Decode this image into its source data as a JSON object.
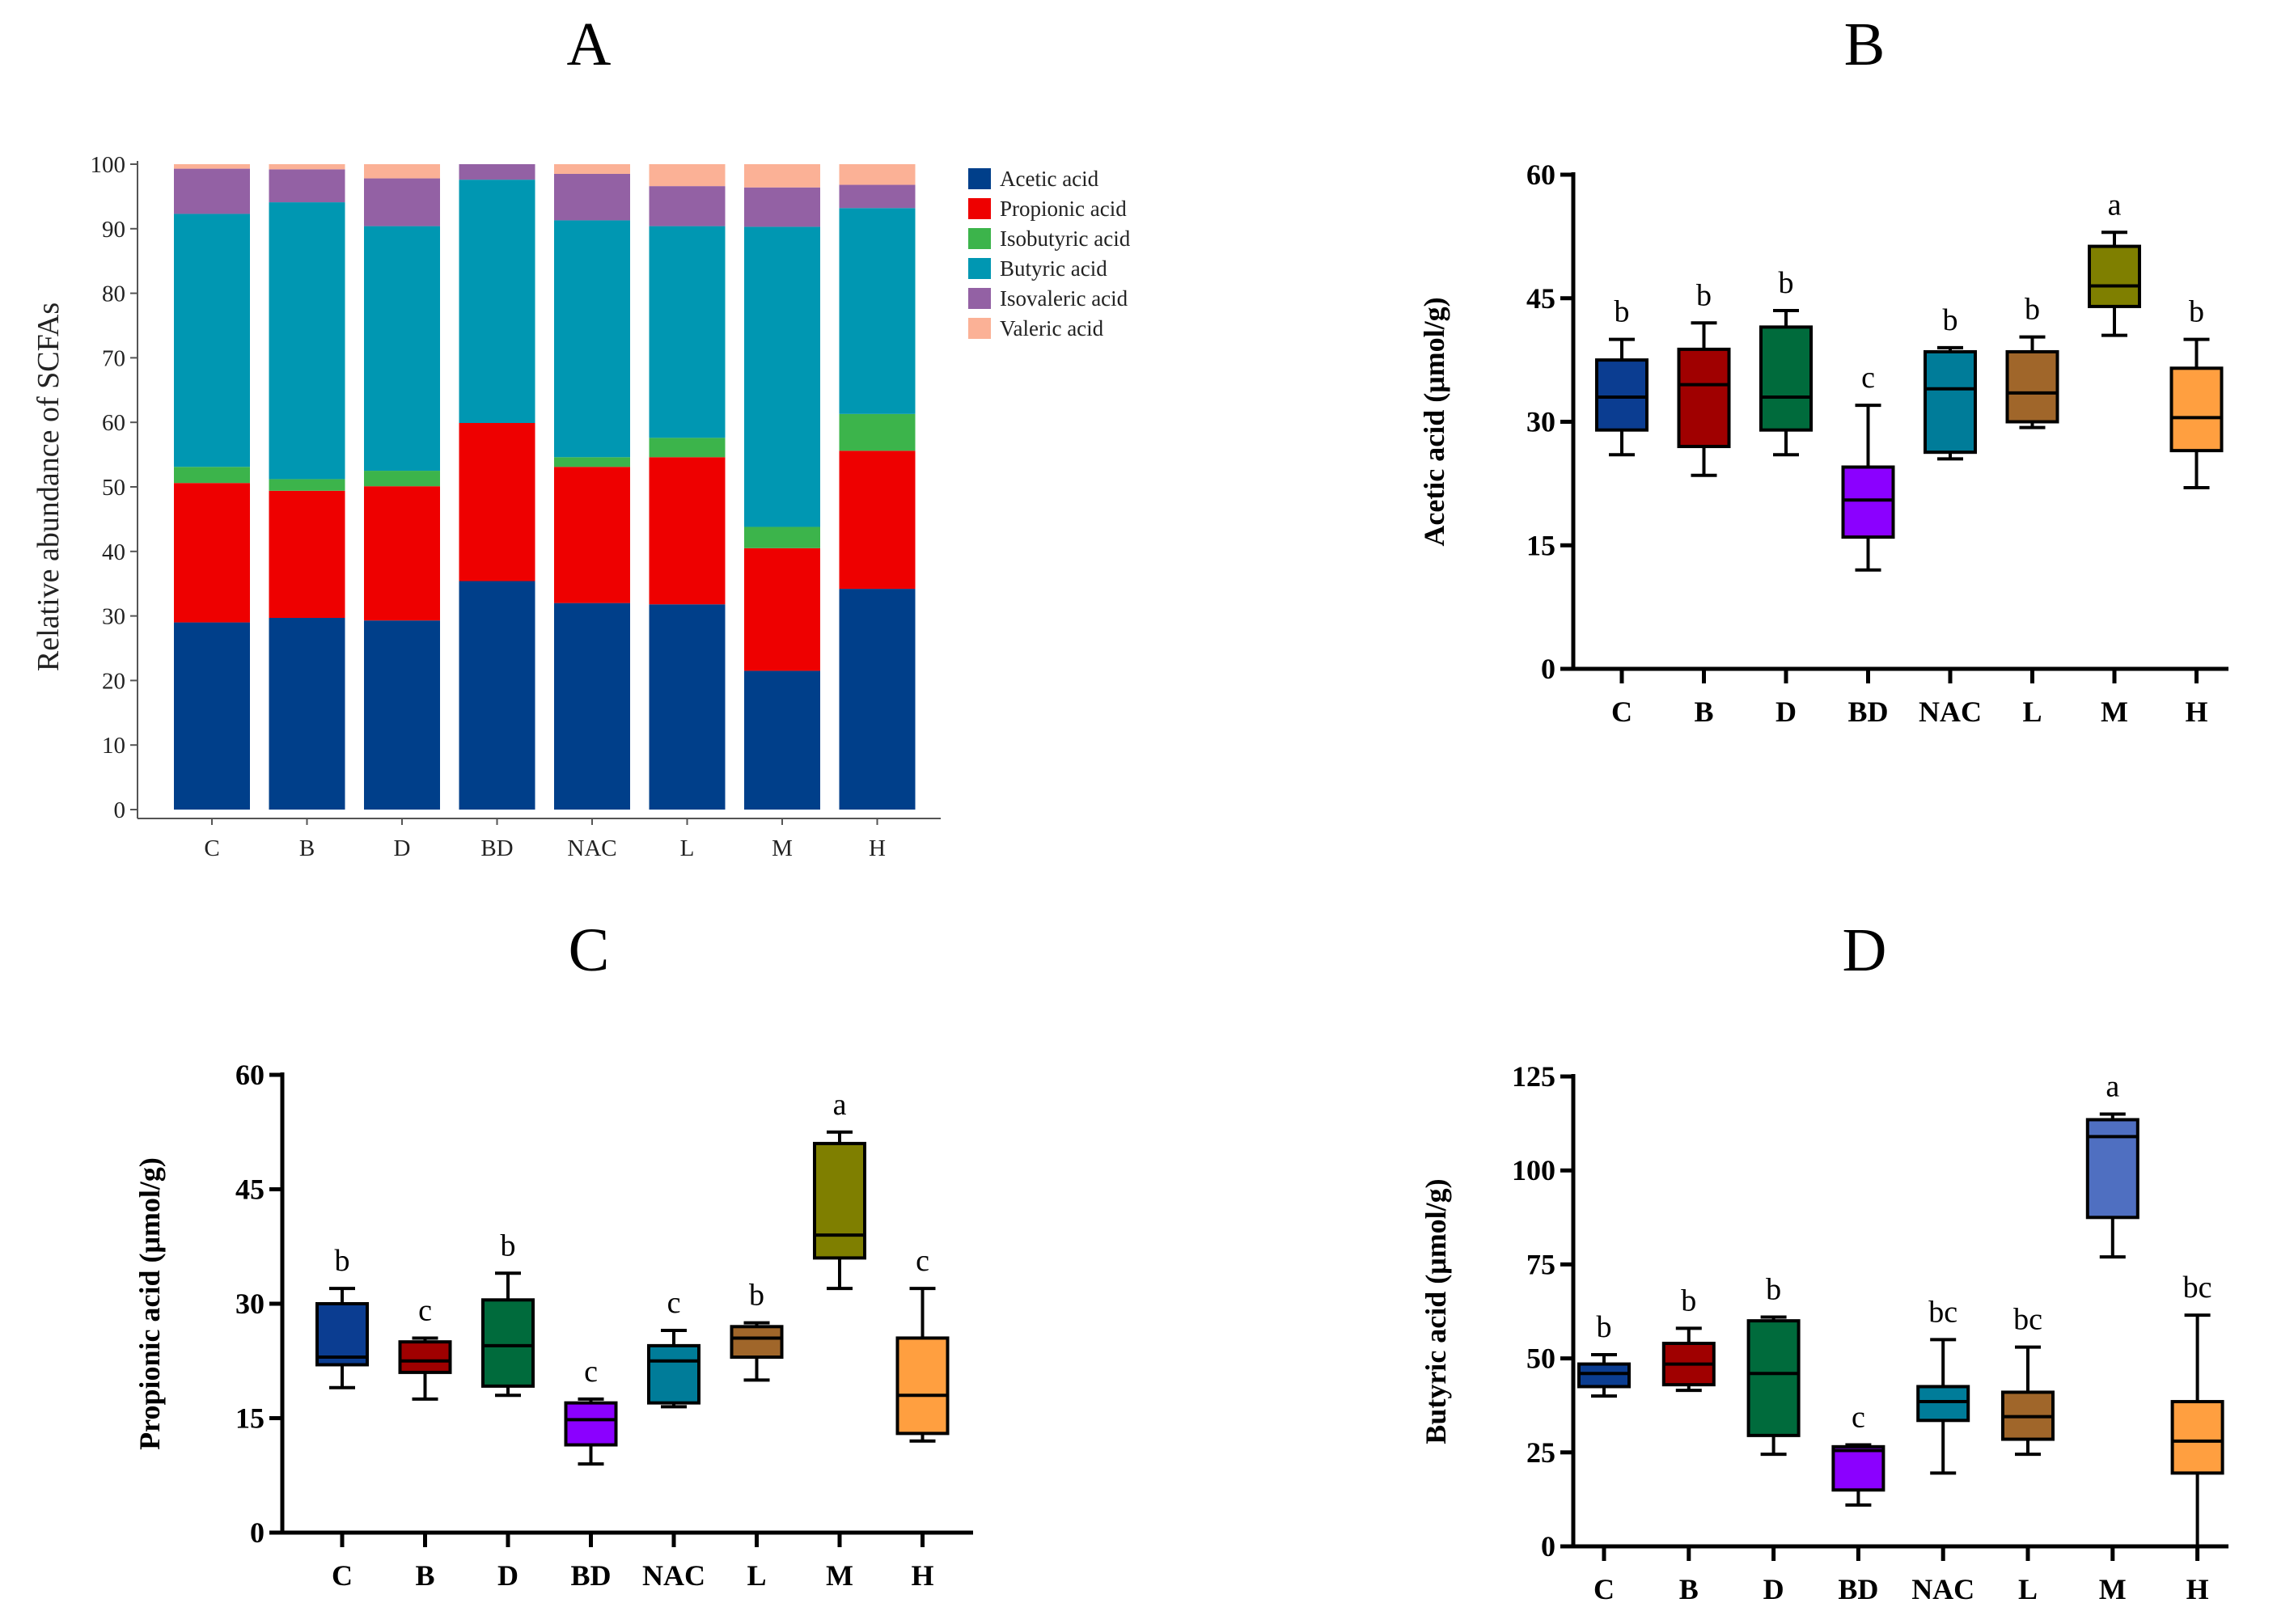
{
  "figure": {
    "panels": [
      "A",
      "B",
      "C",
      "D"
    ]
  },
  "chart_data": [
    {
      "panel": "A",
      "type": "bar",
      "stacked": true,
      "title": "A",
      "xlabel": "",
      "ylabel": "Relative abundance of SCFAs",
      "ylim": [
        0,
        100
      ],
      "yticks": [
        0,
        10,
        20,
        30,
        40,
        50,
        60,
        70,
        80,
        90,
        100
      ],
      "categories": [
        "C",
        "B",
        "D",
        "BD",
        "NAC",
        "L",
        "M",
        "H"
      ],
      "legend_position": "right",
      "series": [
        {
          "name": "Acetic acid",
          "color": "#003f8a",
          "values": [
            29.0,
            29.7,
            29.3,
            35.4,
            32.0,
            31.8,
            21.5,
            34.2
          ]
        },
        {
          "name": "Propionic acid",
          "color": "#ee0000",
          "values": [
            21.6,
            19.7,
            20.8,
            24.5,
            21.1,
            22.8,
            19.0,
            21.4
          ]
        },
        {
          "name": "Isobutyric acid",
          "color": "#3cb44b",
          "values": [
            2.5,
            1.8,
            2.4,
            0.0,
            1.5,
            3.0,
            3.3,
            5.7
          ]
        },
        {
          "name": "Butyric acid",
          "color": "#0097b2",
          "values": [
            39.2,
            42.9,
            37.9,
            37.7,
            36.7,
            32.8,
            46.5,
            31.9
          ]
        },
        {
          "name": "Isovaleric acid",
          "color": "#9361a4",
          "values": [
            7.0,
            5.1,
            7.4,
            2.4,
            7.2,
            6.2,
            6.1,
            3.6
          ]
        },
        {
          "name": "Valeric acid",
          "color": "#fbb196",
          "values": [
            0.7,
            0.8,
            2.2,
            0.0,
            1.5,
            3.4,
            3.6,
            3.2
          ]
        }
      ]
    },
    {
      "panel": "B",
      "type": "box",
      "title": "B",
      "ylabel": "Acetic acid (μmol/g)",
      "ylim": [
        0,
        60
      ],
      "yticks": [
        0,
        15,
        30,
        45,
        60
      ],
      "categories": [
        "C",
        "B",
        "D",
        "BD",
        "NAC",
        "L",
        "M",
        "H"
      ],
      "colors": [
        "#0b3d91",
        "#a00000",
        "#006b3c",
        "#8b00ff",
        "#007c99",
        "#a0662a",
        "#7f7f00",
        "#ff9f40"
      ],
      "boxes": [
        {
          "min": 26,
          "q1": 29,
          "median": 33,
          "q3": 37.5,
          "max": 40,
          "letter": "b"
        },
        {
          "min": 23.5,
          "q1": 27,
          "median": 34.5,
          "q3": 38.8,
          "max": 42,
          "letter": "b"
        },
        {
          "min": 26,
          "q1": 29,
          "median": 33,
          "q3": 41.5,
          "max": 43.5,
          "letter": "b"
        },
        {
          "min": 12,
          "q1": 16,
          "median": 20.5,
          "q3": 24.5,
          "max": 32,
          "letter": "c"
        },
        {
          "min": 25.5,
          "q1": 26.3,
          "median": 34,
          "q3": 38.5,
          "max": 39,
          "letter": "b"
        },
        {
          "min": 29.3,
          "q1": 30,
          "median": 33.5,
          "q3": 38.5,
          "max": 40.3,
          "letter": "b"
        },
        {
          "min": 40.5,
          "q1": 44,
          "median": 46.5,
          "q3": 51.3,
          "max": 53,
          "letter": "a"
        },
        {
          "min": 22,
          "q1": 26.5,
          "median": 30.5,
          "q3": 36.5,
          "max": 40,
          "letter": "b"
        }
      ]
    },
    {
      "panel": "C",
      "type": "box",
      "title": "C",
      "ylabel": "Propionic acid (μmol/g)",
      "ylim": [
        0,
        60
      ],
      "yticks": [
        0,
        15,
        30,
        45,
        60
      ],
      "categories": [
        "C",
        "B",
        "D",
        "BD",
        "NAC",
        "L",
        "M",
        "H"
      ],
      "colors": [
        "#0b3d91",
        "#a00000",
        "#006b3c",
        "#8b00ff",
        "#007c99",
        "#a0662a",
        "#7f7f00",
        "#ff9f40"
      ],
      "boxes": [
        {
          "min": 19,
          "q1": 22,
          "median": 23,
          "q3": 30,
          "max": 32,
          "letter": "b"
        },
        {
          "min": 17.5,
          "q1": 21,
          "median": 22.5,
          "q3": 25,
          "max": 25.5,
          "letter": "c"
        },
        {
          "min": 18,
          "q1": 19.2,
          "median": 24.5,
          "q3": 30.5,
          "max": 34,
          "letter": "b"
        },
        {
          "min": 9,
          "q1": 11.5,
          "median": 14.8,
          "q3": 17,
          "max": 17.5,
          "letter": "c"
        },
        {
          "min": 16.5,
          "q1": 17,
          "median": 22.5,
          "q3": 24.5,
          "max": 26.5,
          "letter": "c"
        },
        {
          "min": 20,
          "q1": 23,
          "median": 25.5,
          "q3": 27,
          "max": 27.5,
          "letter": "b"
        },
        {
          "min": 32,
          "q1": 36,
          "median": 39,
          "q3": 51,
          "max": 52.5,
          "letter": "a"
        },
        {
          "min": 12,
          "q1": 13,
          "median": 18,
          "q3": 25.5,
          "max": 32,
          "letter": "c"
        }
      ]
    },
    {
      "panel": "D",
      "type": "box",
      "title": "D",
      "ylabel": "Butyric acid (μmol/g)",
      "ylim": [
        0,
        125
      ],
      "yticks": [
        0,
        25,
        50,
        75,
        100,
        125
      ],
      "categories": [
        "C",
        "B",
        "D",
        "BD",
        "NAC",
        "L",
        "M",
        "H"
      ],
      "colors": [
        "#0b3d91",
        "#a00000",
        "#006b3c",
        "#8b00ff",
        "#007c99",
        "#a0662a",
        "#4f6fc1",
        "#ff9f40"
      ],
      "boxes": [
        {
          "min": 40,
          "q1": 42.5,
          "median": 46,
          "q3": 48.5,
          "max": 51,
          "letter": "b"
        },
        {
          "min": 41.5,
          "q1": 43,
          "median": 48.5,
          "q3": 54,
          "max": 58,
          "letter": "b"
        },
        {
          "min": 24.5,
          "q1": 29.5,
          "median": 46,
          "q3": 60,
          "max": 61,
          "letter": "b"
        },
        {
          "min": 11,
          "q1": 15,
          "median": 25.5,
          "q3": 26.5,
          "max": 27,
          "letter": "c"
        },
        {
          "min": 19.5,
          "q1": 33.5,
          "median": 38.5,
          "q3": 42.5,
          "max": 55,
          "letter": "bc"
        },
        {
          "min": 24.5,
          "q1": 28.5,
          "median": 34.5,
          "q3": 41,
          "max": 53,
          "letter": "bc"
        },
        {
          "min": 77,
          "q1": 87.5,
          "median": 109,
          "q3": 113.5,
          "max": 115,
          "letter": "a"
        },
        {
          "min": 0,
          "q1": 19.5,
          "median": 28,
          "q3": 38.5,
          "max": 61.5,
          "letter": "bc"
        }
      ]
    }
  ]
}
